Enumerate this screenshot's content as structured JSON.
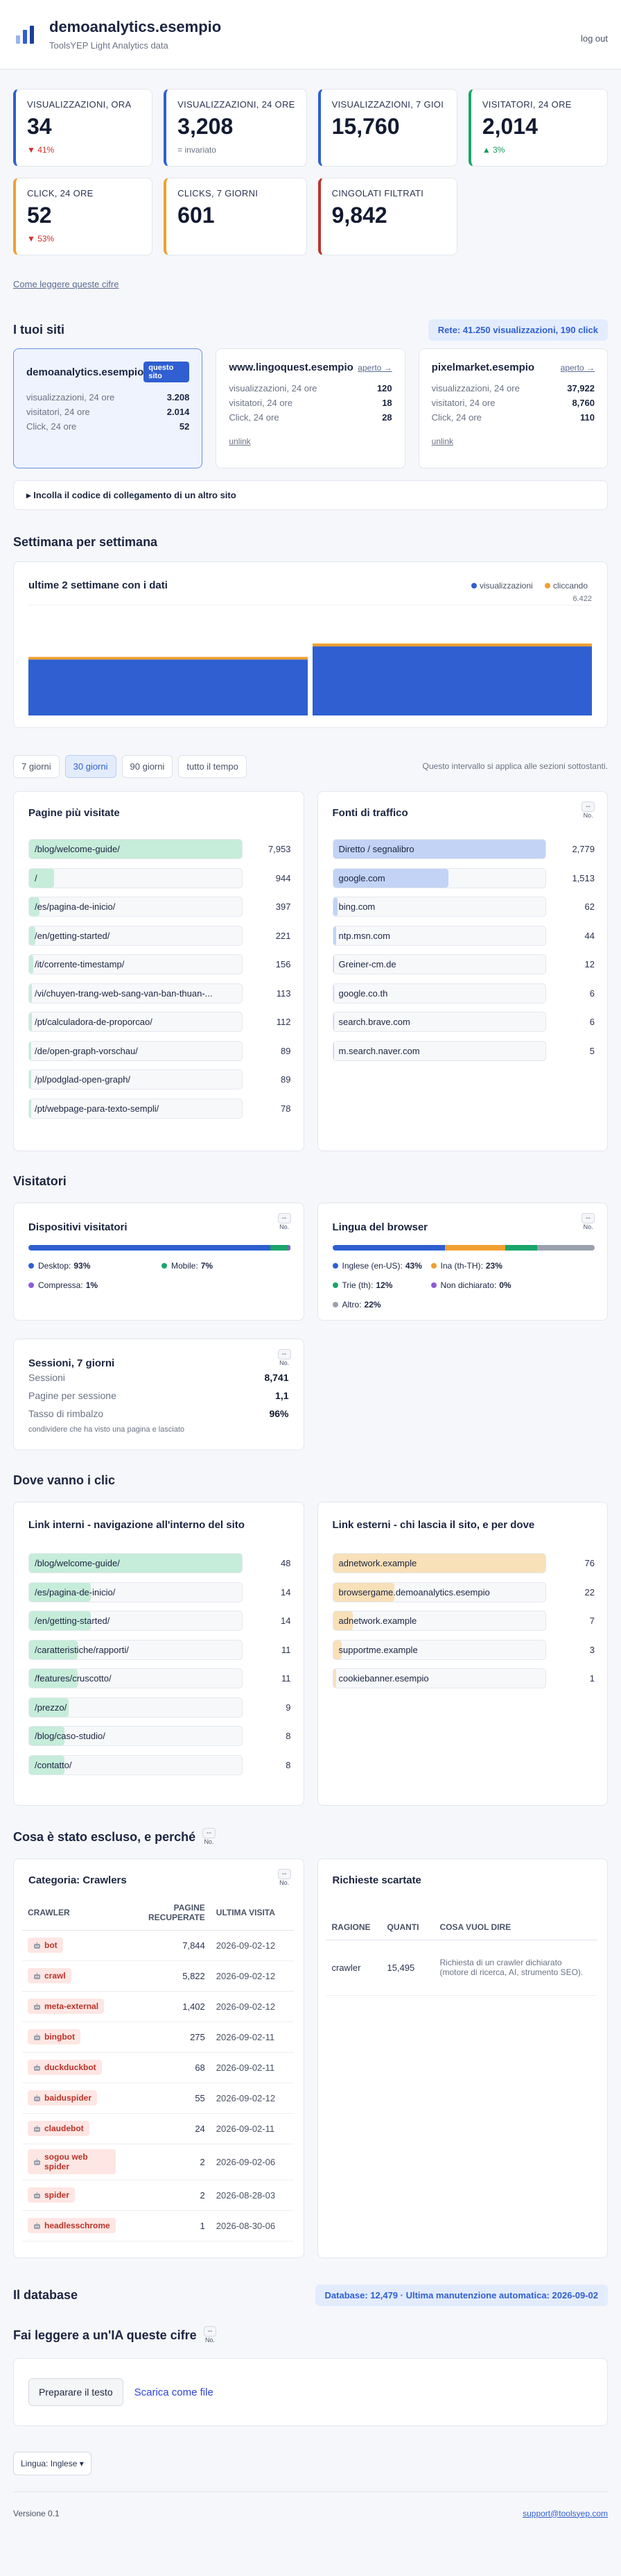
{
  "header": {
    "title": "demoanalytics.esempio",
    "subtitle": "ToolsYEP Light Analytics data",
    "logout": "log out"
  },
  "kpis": [
    {
      "label": "VISUALIZZAZIONI, ORA",
      "value": "34",
      "change": "▼ 41%",
      "color": "#2f5fd0",
      "change_color": "#d0312d"
    },
    {
      "label": "VISUALIZZAZIONI, 24 ORE",
      "value": "3,208",
      "change": "= invariato",
      "color": "#2f5fd0",
      "change_color": "#6b7385"
    },
    {
      "label": "VISUALIZZAZIONI, 7 GIOI",
      "value": "15,760",
      "color": "#2f5fd0"
    },
    {
      "label": "VISITATORI, 24 ORE",
      "value": "2,014",
      "change": "▲ 3%",
      "color": "#1aa56a",
      "change_color": "#1a9a5a"
    },
    {
      "label": "CLICK, 24 ORE",
      "value": "52",
      "change": "▼ 53%",
      "color": "#f0a030",
      "change_color": "#d0312d"
    },
    {
      "label": "CLICKS, 7 GIORNI",
      "value": "601",
      "color": "#f0a030"
    },
    {
      "label": "CINGOLATI FILTRATI",
      "value": "9,842",
      "color": "#b8342a"
    }
  ],
  "how_to_read": "Come leggere queste cifre",
  "sites": {
    "title": "I tuoi siti",
    "network": "Rete: 41.250 visualizzazioni, 190 click",
    "cards": [
      {
        "name": "demoanalytics.esempio",
        "badge": "questo sito",
        "rows": [
          {
            "label": "visualizzazioni, 24 ore",
            "value": "3.208"
          },
          {
            "label": "visitatori, 24 ore",
            "value": "2.014"
          },
          {
            "label": "Click, 24 ore",
            "value": "52"
          }
        ]
      },
      {
        "name": "www.lingoquest.esempio",
        "open": "aperto →",
        "rows": [
          {
            "label": "visualizzazioni, 24 ore",
            "value": "120"
          },
          {
            "label": "visitatori, 24 ore",
            "value": "18"
          },
          {
            "label": "Click, 24 ore",
            "value": "28"
          }
        ],
        "unlink": "unlink"
      },
      {
        "name": "pixelmarket.esempio",
        "open": "aperto →",
        "rows": [
          {
            "label": "visualizzazioni, 24 ore",
            "value": "37,922"
          },
          {
            "label": "visitatori, 24 ore",
            "value": "8,760"
          },
          {
            "label": "Click, 24 ore",
            "value": "110"
          }
        ],
        "unlink": "unlink"
      }
    ],
    "paste": "▸ Incolla il codice di collegamento di un altro sito"
  },
  "weekly_title": "Settimana per settimana",
  "chart_data": {
    "type": "bar",
    "title": "ultime 2 settimane con i dati",
    "categories": [
      null,
      null
    ],
    "stacked": true,
    "series": [
      {
        "name": "visualizzazioni",
        "color": "#2f5fd0",
        "values": [
          3260,
          4020
        ]
      },
      {
        "name": "cliccando",
        "color": "#f0a030",
        "values": [
          150,
          170
        ]
      }
    ],
    "ylim": [
      0,
      6422
    ],
    "yticks": [
      {
        "value": 6422,
        "label": "6.422"
      }
    ]
  },
  "range": {
    "tabs": [
      "7 giorni",
      "30 giorni",
      "90 giorni",
      "tutto il tempo"
    ],
    "active": 1,
    "note": "Questo intervallo si applica alle sezioni sottostanti."
  },
  "top_pages": {
    "title": "Pagine più visitate",
    "color": "#c6ecda",
    "rows": [
      {
        "label": "/blog/welcome-guide/",
        "value": 7953,
        "value_label": "7,953"
      },
      {
        "label": "/",
        "value": 944
      },
      {
        "label": "/es/pagina-de-inicio/",
        "value": 397
      },
      {
        "label": "/en/getting-started/",
        "value": 221
      },
      {
        "label": "/it/corrente-timestamp/",
        "value": 156
      },
      {
        "label": "/vi/chuyen-trang-web-sang-van-ban-thuan-...",
        "value": 113
      },
      {
        "label": "/pt/calculadora-de-proporcao/",
        "value": 112
      },
      {
        "label": "/de/open-graph-vorschau/",
        "value": 89
      },
      {
        "label": "/pl/podglad-open-graph/",
        "value": 89
      },
      {
        "label": "/pt/webpage-para-texto-sempli/",
        "value": 78
      }
    ]
  },
  "sources": {
    "title": "Fonti di traffico",
    "toggle": {
      "label": "--",
      "caption": "No."
    },
    "color": "#c3d3f6",
    "rows": [
      {
        "label": "Diretto / segnalibro",
        "value": 2779,
        "value_label": "2,779"
      },
      {
        "label": "google.com",
        "value": 1513,
        "value_label": "1,513"
      },
      {
        "label": "bing.com",
        "value": 62
      },
      {
        "label": "ntp.msn.com",
        "value": 44
      },
      {
        "label": "Greiner-cm.de",
        "value": 12
      },
      {
        "label": "google.co.th",
        "value": 6
      },
      {
        "label": "search.brave.com",
        "value": 6
      },
      {
        "label": "m.search.naver.com",
        "value": 5
      }
    ]
  },
  "visitors_title": "Visitatori",
  "devices": {
    "title": "Dispositivi visitatori",
    "toggle": {
      "label": "--",
      "caption": "No."
    },
    "segments": [
      {
        "name": "Desktop:",
        "value": 93,
        "value_label": "93%",
        "color": "#2f5fd0"
      },
      {
        "name": "Mobile:",
        "value": 7,
        "value_label": "7%",
        "color": "#1aa56a"
      },
      {
        "name": "Compressa:",
        "value": 1,
        "value_label": "1%",
        "color": "#8e5bd8"
      }
    ]
  },
  "languages": {
    "title": "Lingua del browser",
    "toggle": {
      "label": "--",
      "caption": "No."
    },
    "segments": [
      {
        "name": "Inglese (en-US):",
        "value": 43,
        "value_label": "43%",
        "color": "#2f5fd0"
      },
      {
        "name": "Ina (th-TH):",
        "value": 23,
        "value_label": "23%",
        "color": "#f0a030"
      },
      {
        "name": "Trie (th):",
        "value": 12,
        "value_label": "12%",
        "color": "#1aa56a"
      },
      {
        "name": "Non dichiarato:",
        "value": 0,
        "value_label": "0%",
        "color": "#8e5bd8"
      },
      {
        "name": "Altro:",
        "value": 22,
        "value_label": "22%",
        "color": "#9aa1ad"
      }
    ]
  },
  "sessions": {
    "title": "Sessioni, 7 giorni",
    "toggle": {
      "label": "--",
      "caption": "No."
    },
    "rows": [
      {
        "label": "Sessioni",
        "value": "8,741"
      },
      {
        "label": "Pagine per sessione",
        "value": "1,1"
      },
      {
        "label": "Tasso di rimbalzo",
        "value": "96%"
      }
    ],
    "note": "condividere che ha visto una pagina e lasciato"
  },
  "clicks_title": "Dove vanno i clic",
  "internal_links": {
    "title": "Link interni - navigazione all'interno del sito",
    "color": "#c6ecda",
    "rows": [
      {
        "label": "/blog/welcome-guide/",
        "value": 48
      },
      {
        "label": "/es/pagina-de-inicio/",
        "value": 14
      },
      {
        "label": "/en/getting-started/",
        "value": 14
      },
      {
        "label": "/caratteristiche/rapporti/",
        "value": 11
      },
      {
        "label": "/features/cruscotto/",
        "value": 11
      },
      {
        "label": "/prezzo/",
        "value": 9
      },
      {
        "label": "/blog/caso-studio/",
        "value": 8
      },
      {
        "label": "/contatto/",
        "value": 8
      }
    ]
  },
  "external_links": {
    "title": "Link esterni - chi lascia il sito, e per dove",
    "color": "#f8e0b8",
    "rows": [
      {
        "label": "adnetwork.example",
        "value": 76
      },
      {
        "label": "browsergame.demoanalytics.esempio",
        "value": 22
      },
      {
        "label": "adnetwork.example",
        "value": 7
      },
      {
        "label": "supportme.example",
        "value": 3
      },
      {
        "label": "cookiebanner.esempio",
        "value": 1
      }
    ]
  },
  "excluded": {
    "title": "Cosa è stato escluso, e perché",
    "toggle": {
      "label": "--",
      "caption": "No."
    },
    "crawlers": {
      "title": "Categoria: Crawlers",
      "toggle": {
        "label": "--",
        "caption": "No."
      },
      "columns": [
        "CRAWLER",
        "PAGINE RECUPERATE",
        "ULTIMA VISITA"
      ],
      "rows": [
        [
          "bot",
          "7,844",
          "2026-09-02-12"
        ],
        [
          "crawl",
          "5,822",
          "2026-09-02-12"
        ],
        [
          "meta-external",
          "1,402",
          "2026-09-02-12"
        ],
        [
          "bingbot",
          "275",
          "2026-09-02-11"
        ],
        [
          "duckduckbot",
          "68",
          "2026-09-02-11"
        ],
        [
          "baiduspider",
          "55",
          "2026-09-02-12"
        ],
        [
          "claudebot",
          "24",
          "2026-09-02-11"
        ],
        [
          "sogou web spider",
          "2",
          "2026-09-02-06"
        ],
        [
          "spider",
          "2",
          "2026-08-28-03"
        ],
        [
          "headlesschrome",
          "1",
          "2026-08-30-06"
        ]
      ]
    },
    "discarded": {
      "title": "Richieste scartate",
      "columns": [
        "RAGIONE",
        "QUANTI",
        "COSA VUOL DIRE"
      ],
      "rows": [
        [
          "crawler",
          "15,495",
          "Richiesta di un crawler dichiarato (motore di ricerca, AI, strumento SEO)."
        ]
      ]
    }
  },
  "database": {
    "title": "Il database",
    "badge": "Database: 12,479 · Ultima manutenzione automatica: 2026-09-02"
  },
  "ai": {
    "title": "Fai leggere a un'IA queste cifre",
    "toggle": {
      "label": "--",
      "caption": "No."
    },
    "prepare": "Preparare il testo",
    "download": "Scarica come file"
  },
  "language_select": "Lingua: Inglese ▾",
  "footer": {
    "version": "Versione 0.1",
    "support": "support@toolsyep.com"
  }
}
